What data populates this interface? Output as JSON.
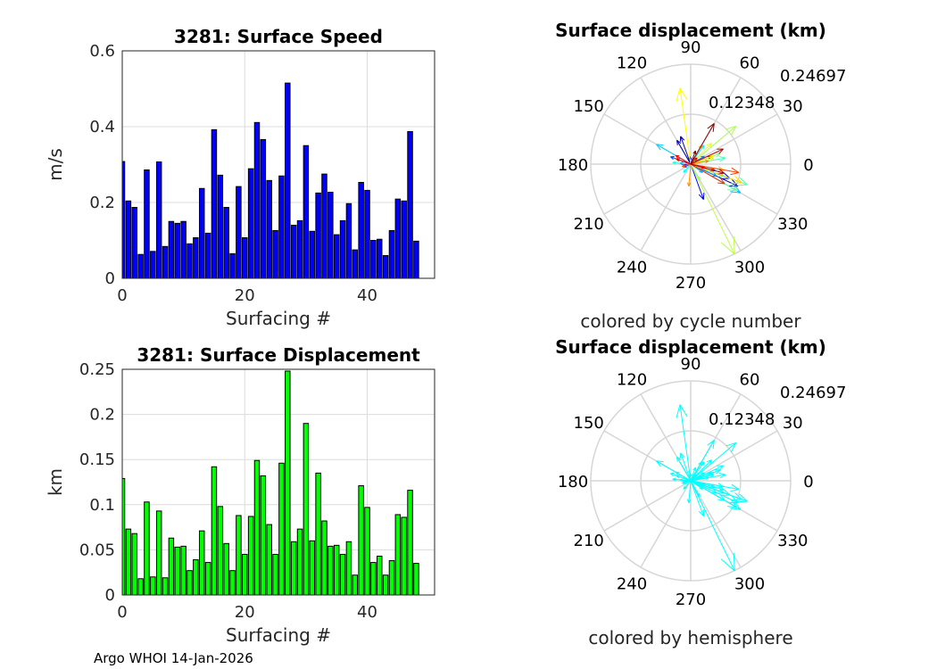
{
  "footer": "Argo WHOI 14-Jan-2026",
  "chart_data": [
    {
      "type": "bar",
      "title": "3281: Surface Speed",
      "xlabel": "Surfacing #",
      "ylabel": "m/s",
      "xlim": [
        0,
        51
      ],
      "ylim": [
        0,
        0.6
      ],
      "xticks": [
        "0",
        "20",
        "40"
      ],
      "yticks": [
        "0",
        "0.2",
        "0.4",
        "0.6"
      ],
      "grid": true,
      "color": "#0000ff",
      "x": [
        0,
        1,
        2,
        3,
        4,
        5,
        6,
        7,
        8,
        9,
        10,
        11,
        12,
        13,
        14,
        15,
        16,
        17,
        18,
        19,
        20,
        21,
        22,
        23,
        24,
        25,
        26,
        27,
        28,
        29,
        30,
        31,
        32,
        33,
        34,
        35,
        36,
        37,
        38,
        39,
        40,
        41,
        42,
        43,
        44,
        45,
        46,
        47,
        48
      ],
      "values": [
        0.308,
        0.204,
        0.187,
        0.063,
        0.286,
        0.071,
        0.307,
        0.084,
        0.15,
        0.145,
        0.15,
        0.091,
        0.107,
        0.237,
        0.119,
        0.392,
        0.272,
        0.187,
        0.065,
        0.242,
        0.107,
        0.289,
        0.411,
        0.366,
        0.258,
        0.126,
        0.27,
        0.515,
        0.14,
        0.152,
        0.35,
        0.124,
        0.225,
        0.275,
        0.227,
        0.115,
        0.152,
        0.197,
        0.075,
        0.253,
        0.232,
        0.1,
        0.103,
        0.06,
        0.126,
        0.209,
        0.204,
        0.387,
        0.098
      ]
    },
    {
      "type": "bar",
      "title": "3281: Surface Displacement",
      "xlabel": "Surfacing #",
      "ylabel": "km",
      "xlim": [
        0,
        51
      ],
      "ylim": [
        0,
        0.25
      ],
      "xticks": [
        "0",
        "20",
        "40"
      ],
      "yticks": [
        "0",
        "0.05",
        "0.1",
        "0.15",
        "0.2",
        "0.25"
      ],
      "grid": true,
      "color": "#00ff00",
      "x": [
        0,
        1,
        2,
        3,
        4,
        5,
        6,
        7,
        8,
        9,
        10,
        11,
        12,
        13,
        14,
        15,
        16,
        17,
        18,
        19,
        20,
        21,
        22,
        23,
        24,
        25,
        26,
        27,
        28,
        29,
        30,
        31,
        32,
        33,
        34,
        35,
        36,
        37,
        38,
        39,
        40,
        41,
        42,
        43,
        44,
        45,
        46,
        47,
        48
      ],
      "values": [
        0.129,
        0.073,
        0.068,
        0.018,
        0.103,
        0.02,
        0.093,
        0.019,
        0.063,
        0.053,
        0.054,
        0.027,
        0.039,
        0.071,
        0.036,
        0.142,
        0.098,
        0.057,
        0.027,
        0.088,
        0.045,
        0.087,
        0.149,
        0.132,
        0.078,
        0.045,
        0.146,
        0.248,
        0.059,
        0.073,
        0.19,
        0.06,
        0.135,
        0.082,
        0.054,
        0.055,
        0.045,
        0.059,
        0.022,
        0.121,
        0.097,
        0.036,
        0.043,
        0.022,
        0.038,
        0.089,
        0.086,
        0.116,
        0.035
      ]
    },
    {
      "type": "polar-quiver",
      "title": "Surface displacement (km)",
      "caption": "colored by cycle number",
      "rings": [
        "0.12348",
        "0.24697"
      ],
      "rmax": 0.24697,
      "angle_labels": [
        "0",
        "30",
        "60",
        "90",
        "120",
        "150",
        "180",
        "210",
        "240",
        "270",
        "300",
        "330"
      ],
      "coloring": "jet by cycle",
      "angles_deg": [
        335,
        110,
        120,
        185,
        340,
        200,
        290,
        95,
        345,
        160,
        20,
        175,
        30,
        335,
        325,
        330,
        150,
        55,
        230,
        340,
        175,
        10,
        340,
        330,
        20,
        300,
        40,
        296,
        15,
        45,
        98,
        20,
        340,
        350,
        60,
        265,
        10,
        345,
        195,
        350,
        330,
        345,
        150,
        45,
        160,
        25,
        345,
        60,
        70
      ]
    },
    {
      "type": "polar-quiver",
      "title": "Surface displacement (km)",
      "caption": "colored by hemisphere",
      "rings": [
        "0.12348",
        "0.24697"
      ],
      "rmax": 0.24697,
      "angle_labels": [
        "0",
        "30",
        "60",
        "90",
        "120",
        "150",
        "180",
        "210",
        "240",
        "270",
        "300",
        "330"
      ],
      "color": "#00ffff",
      "angles_deg": [
        335,
        110,
        120,
        185,
        340,
        200,
        290,
        95,
        345,
        160,
        20,
        175,
        30,
        335,
        325,
        330,
        150,
        55,
        230,
        340,
        175,
        10,
        340,
        330,
        20,
        300,
        40,
        296,
        15,
        45,
        98,
        20,
        340,
        350,
        60,
        265,
        10,
        345,
        195,
        350,
        330,
        345,
        150,
        45,
        160,
        25,
        345,
        60,
        70
      ]
    }
  ]
}
